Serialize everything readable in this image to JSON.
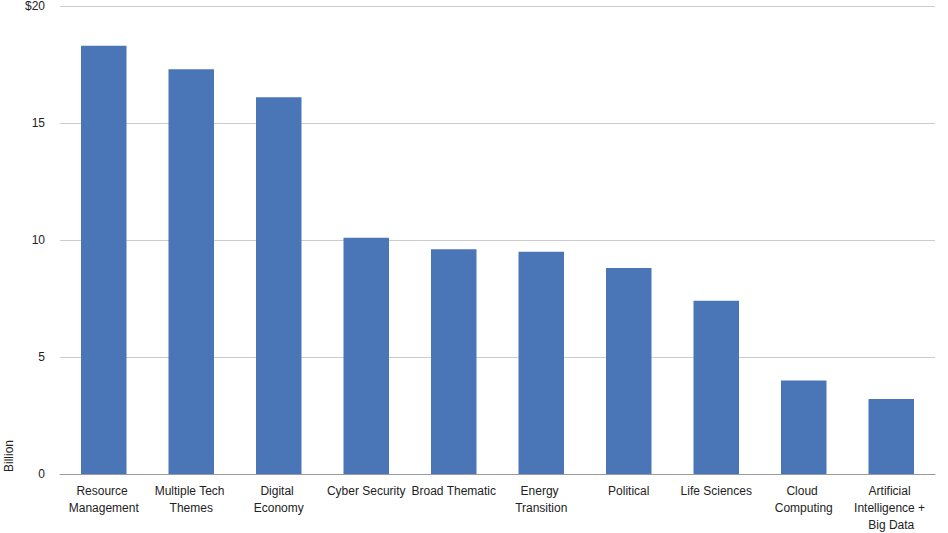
{
  "chart_data": {
    "type": "bar",
    "y_label": "Billion",
    "categories": [
      "Resource Management",
      "Multiple Tech Themes",
      "Digital Economy",
      "Cyber Security",
      "Broad Thematic",
      "Energy Transition",
      "Political",
      "Life Sciences",
      "Cloud Computing",
      "Artificial Intelligence + Big Data"
    ],
    "values": [
      18.3,
      17.3,
      16.1,
      10.1,
      9.6,
      9.5,
      8.8,
      7.4,
      4.0,
      3.2
    ],
    "color": "#4a76b8",
    "ylim": [
      0,
      20
    ],
    "yticks": [
      0,
      5,
      10,
      15,
      {
        "value": 20,
        "label": "$20"
      }
    ],
    "grid": true
  }
}
